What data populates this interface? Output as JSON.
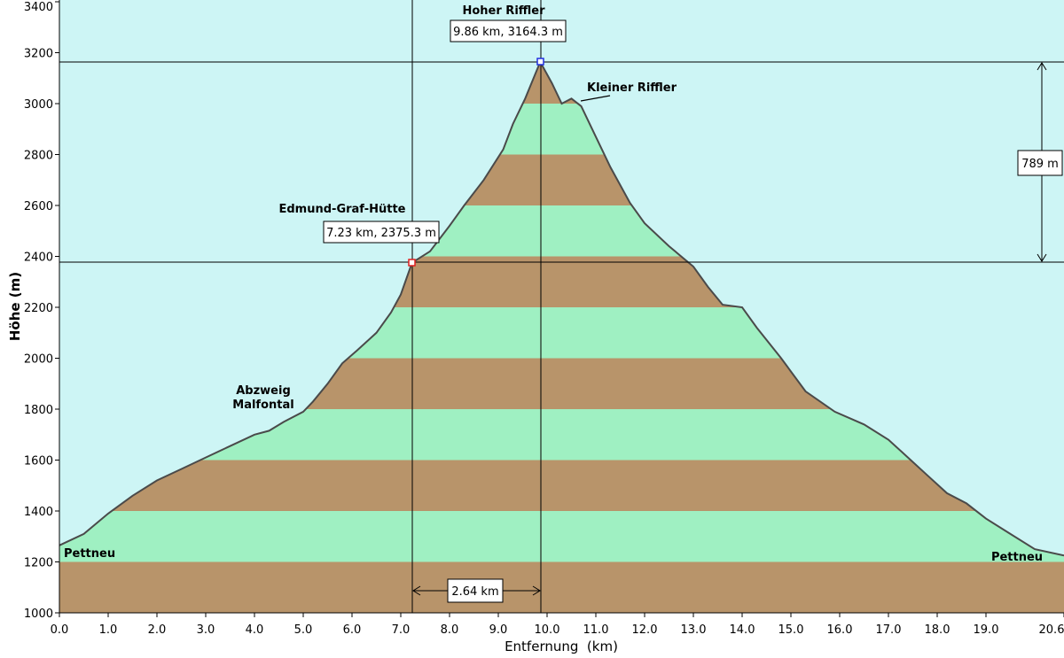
{
  "chart_data": {
    "type": "area",
    "xlabel": "Entfernung  (km)",
    "ylabel": "Höhe (m)",
    "xlim": [
      0,
      20.6
    ],
    "ylim": [
      1000,
      3400
    ],
    "x_ticks": [
      "0.0",
      "1.0",
      "2.0",
      "3.0",
      "4.0",
      "5.0",
      "6.0",
      "7.0",
      "8.0",
      "9.0",
      "10.0",
      "11.0",
      "12.0",
      "13.0",
      "14.0",
      "15.0",
      "16.0",
      "17.0",
      "18.0",
      "19.0",
      "20.6"
    ],
    "y_ticks": [
      "1000",
      "1200",
      "1400",
      "1600",
      "1800",
      "2000",
      "2200",
      "2400",
      "2600",
      "2800",
      "3000",
      "3200",
      "3400"
    ],
    "band_interval": 200,
    "colors": {
      "sky": "#cdf5f5",
      "band_brown": "#b8946a",
      "band_green": "#9ff0c2",
      "outline": "#4a4a4a"
    },
    "profile": [
      [
        0.0,
        1265
      ],
      [
        0.5,
        1310
      ],
      [
        1.0,
        1390
      ],
      [
        1.5,
        1460
      ],
      [
        2.0,
        1520
      ],
      [
        2.5,
        1565
      ],
      [
        3.0,
        1610
      ],
      [
        3.5,
        1655
      ],
      [
        4.0,
        1700
      ],
      [
        4.3,
        1715
      ],
      [
        4.6,
        1750
      ],
      [
        5.0,
        1790
      ],
      [
        5.2,
        1830
      ],
      [
        5.5,
        1900
      ],
      [
        5.8,
        1980
      ],
      [
        6.1,
        2030
      ],
      [
        6.5,
        2100
      ],
      [
        6.8,
        2180
      ],
      [
        7.0,
        2250
      ],
      [
        7.23,
        2375
      ],
      [
        7.6,
        2420
      ],
      [
        8.0,
        2520
      ],
      [
        8.3,
        2600
      ],
      [
        8.7,
        2700
      ],
      [
        9.1,
        2820
      ],
      [
        9.3,
        2920
      ],
      [
        9.55,
        3020
      ],
      [
        9.86,
        3164
      ],
      [
        10.1,
        3080
      ],
      [
        10.3,
        3000
      ],
      [
        10.5,
        3020
      ],
      [
        10.7,
        2990
      ],
      [
        11.0,
        2870
      ],
      [
        11.3,
        2750
      ],
      [
        11.7,
        2610
      ],
      [
        12.0,
        2530
      ],
      [
        12.5,
        2440
      ],
      [
        13.0,
        2360
      ],
      [
        13.3,
        2280
      ],
      [
        13.6,
        2210
      ],
      [
        14.0,
        2200
      ],
      [
        14.3,
        2120
      ],
      [
        14.8,
        2000
      ],
      [
        15.3,
        1870
      ],
      [
        15.9,
        1790
      ],
      [
        16.5,
        1740
      ],
      [
        17.0,
        1680
      ],
      [
        17.4,
        1610
      ],
      [
        17.8,
        1540
      ],
      [
        18.2,
        1470
      ],
      [
        18.6,
        1430
      ],
      [
        19.0,
        1370
      ],
      [
        19.5,
        1310
      ],
      [
        20.0,
        1250
      ],
      [
        20.6,
        1225
      ]
    ],
    "markers": [
      {
        "name": "Edmund-Graf-Hütte",
        "x": 7.23,
        "y": 2375.3,
        "label": "7.23 km, 2375.3 m",
        "color": "#e02020"
      },
      {
        "name": "Hoher Riffler",
        "x": 9.86,
        "y": 3164.3,
        "label": "9.86 km, 3164.3 m",
        "color": "#2030e0"
      }
    ],
    "distance_label": "2.64 km",
    "height_diff_label": "789 m",
    "annotations": [
      "Hoher Riffler",
      "Kleiner Riffler",
      "Edmund-Graf-Hütte",
      "Abzweig",
      "Malfontal",
      "Pettneu",
      "Pettneu"
    ]
  }
}
